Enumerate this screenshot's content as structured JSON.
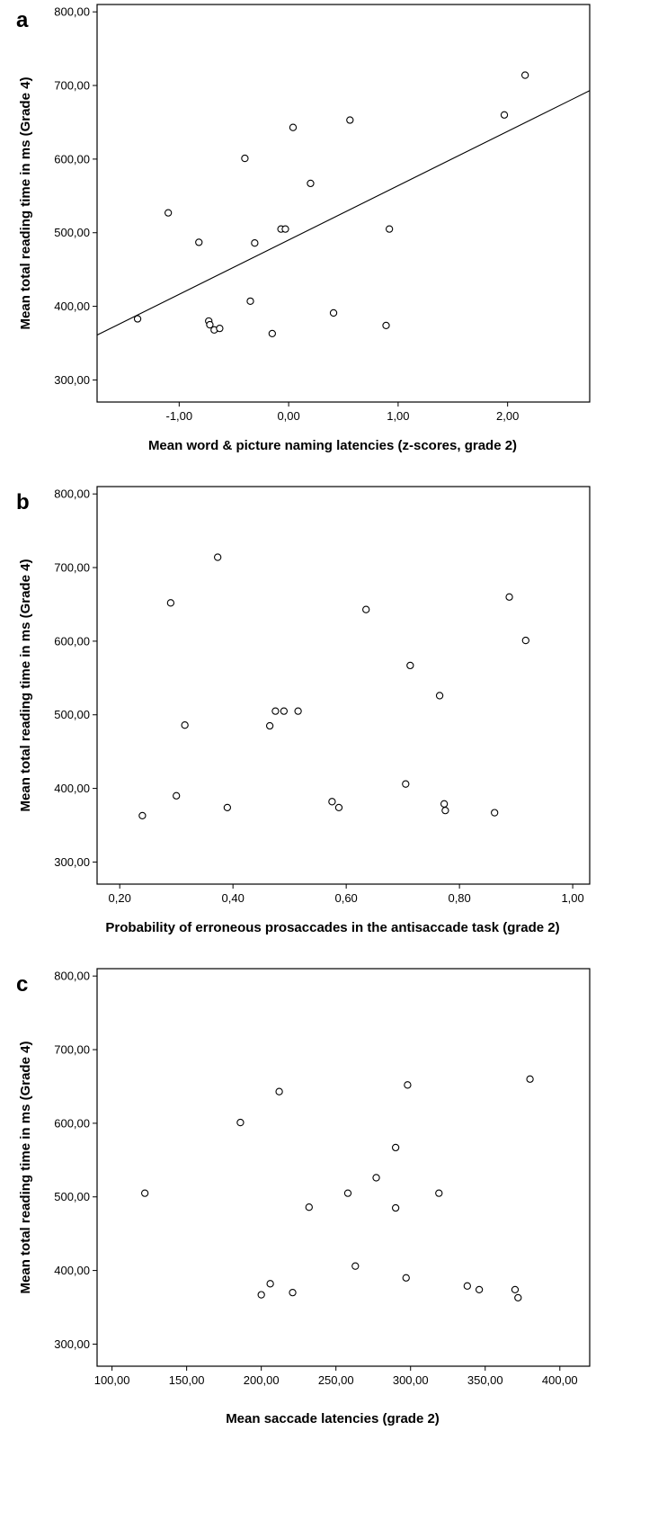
{
  "chart_data": [
    {
      "type": "scatter",
      "panel_label": "a",
      "xlabel": "Mean word & picture naming latencies (z-scores, grade 2)",
      "ylabel": "Mean total reading time in ms (Grade 4)",
      "xlim": [
        -1.75,
        2.75
      ],
      "ylim": [
        270,
        810
      ],
      "x_ticks": [
        -1,
        0,
        1,
        2
      ],
      "x_tick_labels": [
        "-1,00",
        "0,00",
        "1,00",
        "2,00"
      ],
      "y_ticks": [
        300,
        400,
        500,
        600,
        700,
        800
      ],
      "y_tick_labels": [
        "300,00",
        "400,00",
        "500,00",
        "600,00",
        "700,00",
        "800,00"
      ],
      "fit_line": {
        "x": [
          -1.75,
          2.75
        ],
        "y": [
          361,
          693
        ]
      },
      "points": [
        {
          "x": -1.38,
          "y": 383
        },
        {
          "x": -1.1,
          "y": 527
        },
        {
          "x": -0.82,
          "y": 487
        },
        {
          "x": -0.73,
          "y": 380
        },
        {
          "x": -0.72,
          "y": 375
        },
        {
          "x": -0.68,
          "y": 368
        },
        {
          "x": -0.63,
          "y": 370
        },
        {
          "x": -0.4,
          "y": 601
        },
        {
          "x": -0.35,
          "y": 407
        },
        {
          "x": -0.31,
          "y": 486
        },
        {
          "x": -0.15,
          "y": 363
        },
        {
          "x": -0.07,
          "y": 505
        },
        {
          "x": -0.03,
          "y": 505
        },
        {
          "x": 0.04,
          "y": 643
        },
        {
          "x": 0.2,
          "y": 567
        },
        {
          "x": 0.41,
          "y": 391
        },
        {
          "x": 0.56,
          "y": 653
        },
        {
          "x": 0.89,
          "y": 374
        },
        {
          "x": 0.92,
          "y": 505
        },
        {
          "x": 1.97,
          "y": 660
        },
        {
          "x": 2.16,
          "y": 714
        }
      ]
    },
    {
      "type": "scatter",
      "panel_label": "b",
      "xlabel": "Probability of erroneous prosaccades in the antisaccade task (grade 2)",
      "ylabel": "Mean total reading time in ms (Grade 4)",
      "xlim": [
        0.16,
        1.03
      ],
      "ylim": [
        270,
        810
      ],
      "x_ticks": [
        0.2,
        0.4,
        0.6,
        0.8,
        1.0
      ],
      "x_tick_labels": [
        "0,20",
        "0,40",
        "0,60",
        "0,80",
        "1,00"
      ],
      "y_ticks": [
        300,
        400,
        500,
        600,
        700,
        800
      ],
      "y_tick_labels": [
        "300,00",
        "400,00",
        "500,00",
        "600,00",
        "700,00",
        "800,00"
      ],
      "points": [
        {
          "x": 0.24,
          "y": 363
        },
        {
          "x": 0.29,
          "y": 652
        },
        {
          "x": 0.3,
          "y": 390
        },
        {
          "x": 0.315,
          "y": 486
        },
        {
          "x": 0.373,
          "y": 714
        },
        {
          "x": 0.39,
          "y": 374
        },
        {
          "x": 0.465,
          "y": 485
        },
        {
          "x": 0.475,
          "y": 505
        },
        {
          "x": 0.49,
          "y": 505
        },
        {
          "x": 0.515,
          "y": 505
        },
        {
          "x": 0.575,
          "y": 382
        },
        {
          "x": 0.587,
          "y": 374
        },
        {
          "x": 0.635,
          "y": 643
        },
        {
          "x": 0.705,
          "y": 406
        },
        {
          "x": 0.713,
          "y": 567
        },
        {
          "x": 0.765,
          "y": 526
        },
        {
          "x": 0.773,
          "y": 379
        },
        {
          "x": 0.775,
          "y": 370
        },
        {
          "x": 0.862,
          "y": 367
        },
        {
          "x": 0.888,
          "y": 660
        },
        {
          "x": 0.917,
          "y": 601
        }
      ]
    },
    {
      "type": "scatter",
      "panel_label": "c",
      "xlabel": "Mean saccade latencies (grade 2)",
      "ylabel": "Mean total reading time in ms (Grade 4)",
      "xlim": [
        90,
        420
      ],
      "ylim": [
        270,
        810
      ],
      "x_ticks": [
        100,
        150,
        200,
        250,
        300,
        350,
        400
      ],
      "x_tick_labels": [
        "100,00",
        "150,00",
        "200,00",
        "250,00",
        "300,00",
        "350,00",
        "400,00"
      ],
      "y_ticks": [
        300,
        400,
        500,
        600,
        700,
        800
      ],
      "y_tick_labels": [
        "300,00",
        "400,00",
        "500,00",
        "600,00",
        "700,00",
        "800,00"
      ],
      "points": [
        {
          "x": 122,
          "y": 505
        },
        {
          "x": 186,
          "y": 601
        },
        {
          "x": 200,
          "y": 367
        },
        {
          "x": 206,
          "y": 382
        },
        {
          "x": 212,
          "y": 643
        },
        {
          "x": 221,
          "y": 370
        },
        {
          "x": 232,
          "y": 486
        },
        {
          "x": 258,
          "y": 505
        },
        {
          "x": 263,
          "y": 406
        },
        {
          "x": 277,
          "y": 526
        },
        {
          "x": 290,
          "y": 567
        },
        {
          "x": 290,
          "y": 485
        },
        {
          "x": 297,
          "y": 390
        },
        {
          "x": 298,
          "y": 652
        },
        {
          "x": 319,
          "y": 505
        },
        {
          "x": 338,
          "y": 379
        },
        {
          "x": 346,
          "y": 374
        },
        {
          "x": 370,
          "y": 374
        },
        {
          "x": 372,
          "y": 363
        },
        {
          "x": 380,
          "y": 660
        }
      ]
    }
  ]
}
